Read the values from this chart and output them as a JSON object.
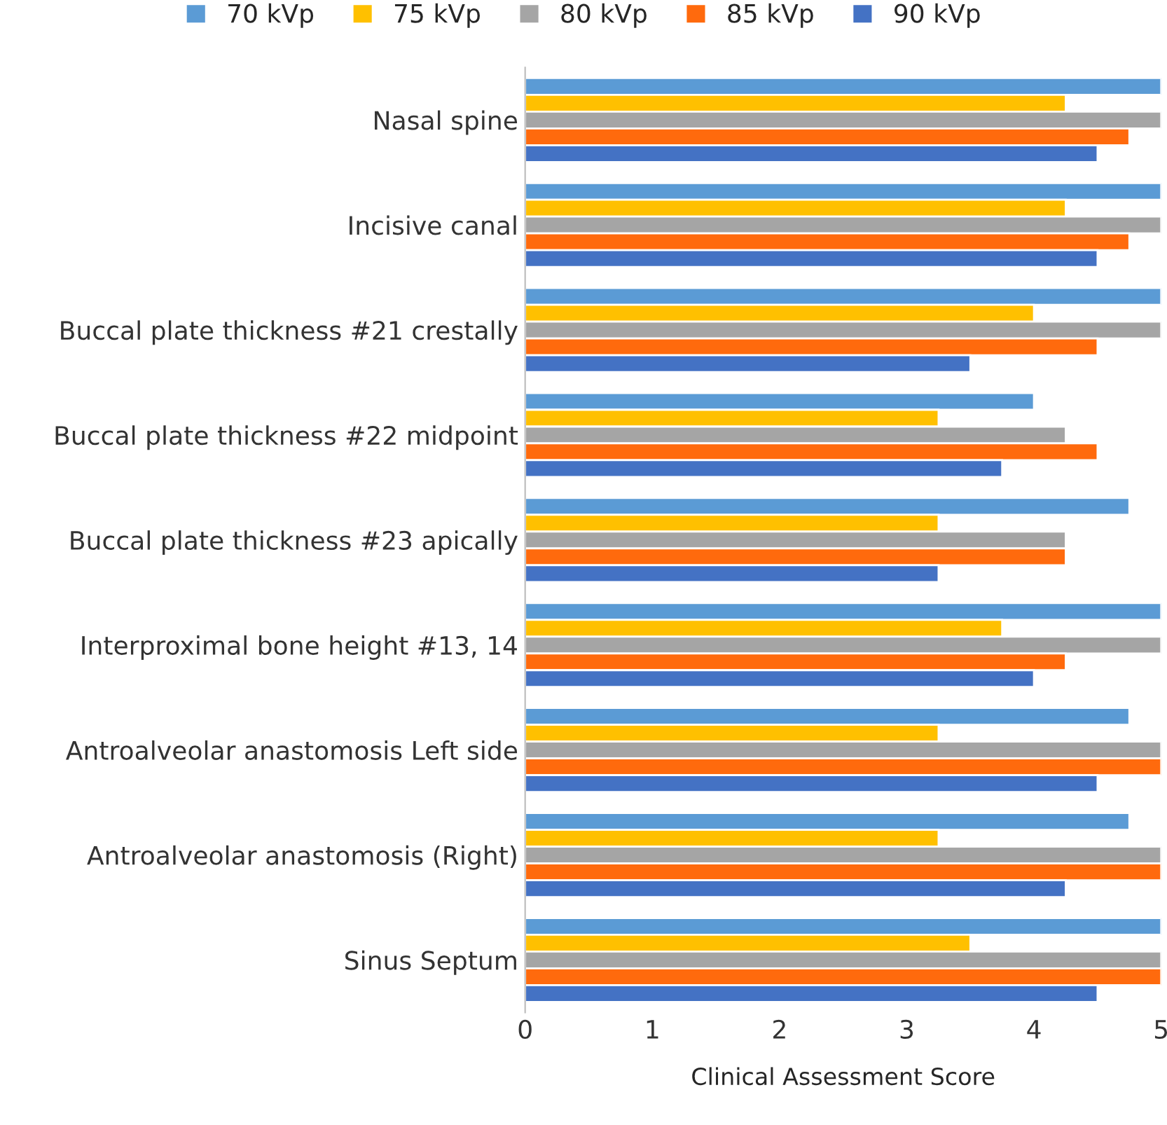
{
  "chart_data": {
    "type": "bar",
    "orientation": "horizontal",
    "xlabel": "Clinical Assessment Score",
    "categories": [
      "Nasal spine",
      "Incisive canal",
      "Buccal plate thickness #21 crestally",
      "Buccal plate thickness #22 midpoint",
      "Buccal plate thickness #23 apically",
      "Interproximal bone height #13, 14",
      "Antroalveolar anastomosis Left side",
      "Antroalveolar anastomosis (Right)",
      "Sinus Septum"
    ],
    "series": [
      {
        "name": "70 kVp",
        "color": "#5b9bd5",
        "values": [
          5,
          5,
          5,
          4.0,
          4.75,
          5,
          4.75,
          4.75,
          5
        ]
      },
      {
        "name": "75 kVp",
        "color": "#ffc000",
        "values": [
          4.25,
          4.25,
          4.0,
          3.25,
          3.25,
          3.75,
          3.25,
          3.25,
          3.5
        ]
      },
      {
        "name": "80 kVp",
        "color": "#a5a5a5",
        "values": [
          5,
          5,
          5,
          4.25,
          4.25,
          5,
          5,
          5,
          5
        ]
      },
      {
        "name": "85 kVp",
        "color": "#ff6a0d",
        "values": [
          4.75,
          4.75,
          4.5,
          4.5,
          4.25,
          4.25,
          5,
          5,
          5
        ]
      },
      {
        "name": "90 kVp",
        "color": "#4472c4",
        "values": [
          4.5,
          4.5,
          3.5,
          3.75,
          3.25,
          4.0,
          4.5,
          4.25,
          4.5
        ]
      }
    ],
    "xlim": [
      0,
      5
    ],
    "xticks": [
      0,
      1,
      2,
      3,
      4,
      5
    ],
    "legend": "top",
    "grid": false
  }
}
